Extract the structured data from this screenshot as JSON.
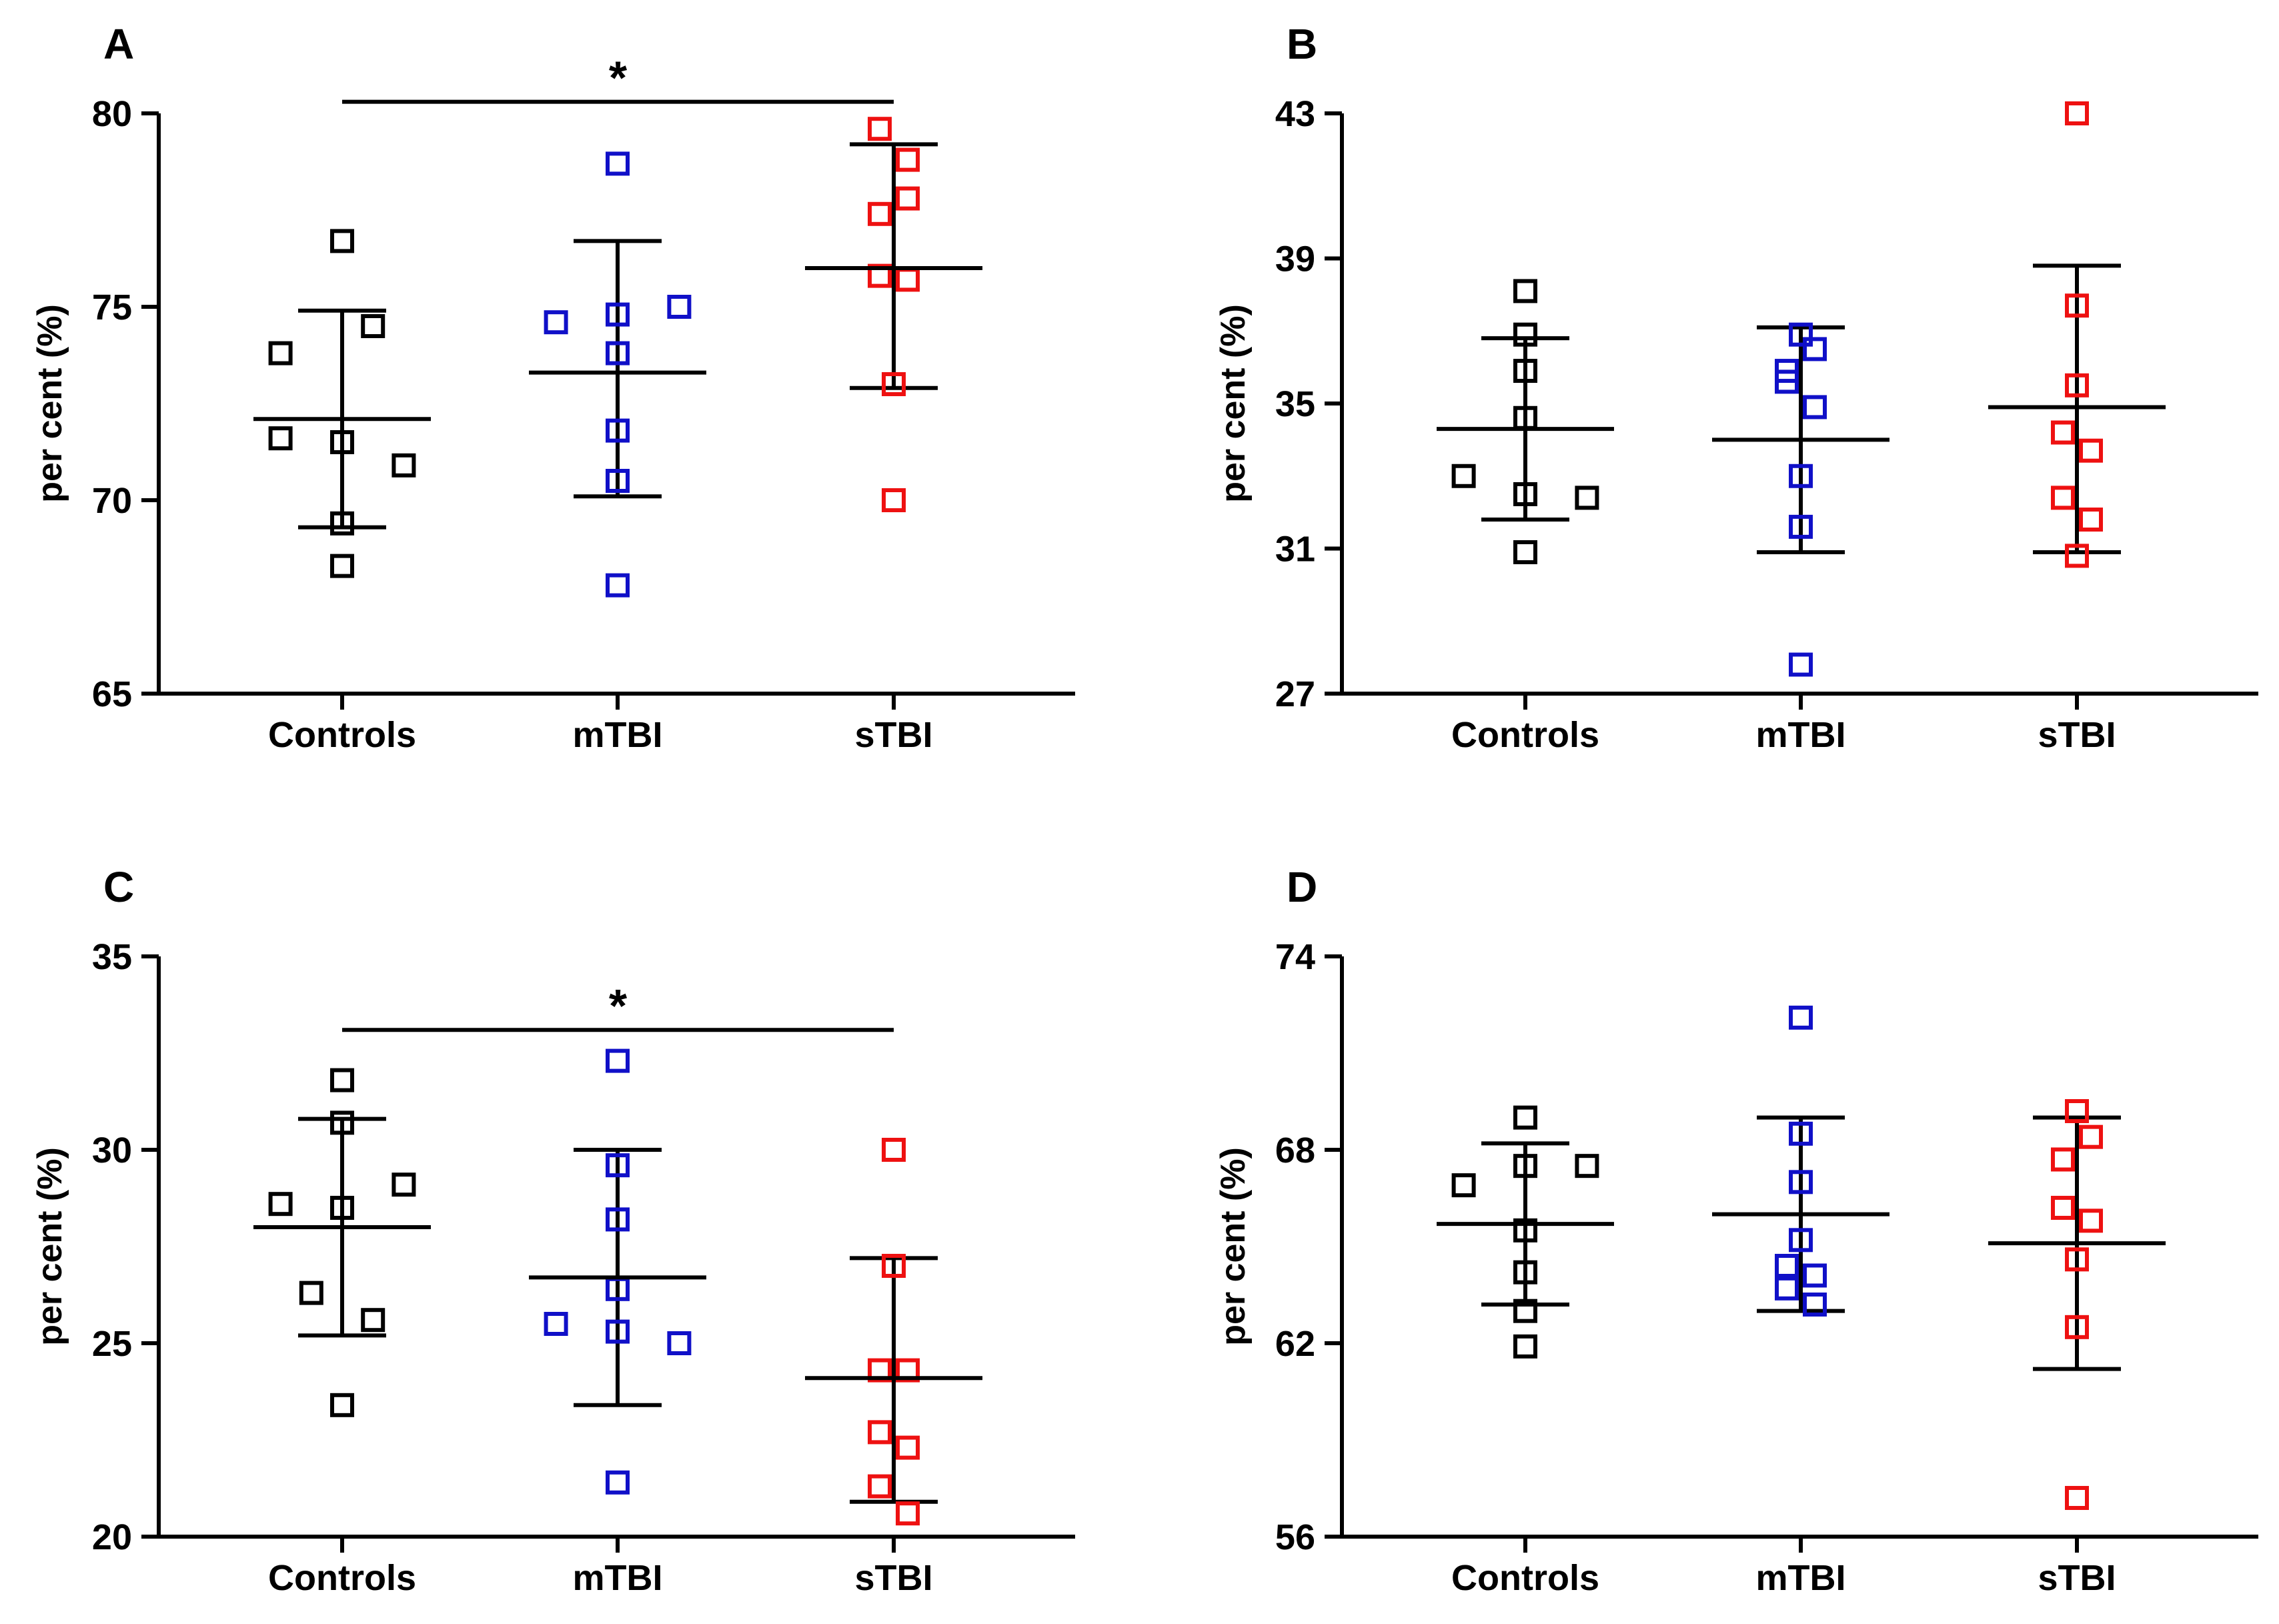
{
  "colors": {
    "Controls": "#000000",
    "mTBI": "#1010c8",
    "sTBI": "#ee1111"
  },
  "chart_data": [
    {
      "type": "scatter",
      "panel": "A",
      "ylabel": "per cent (%)",
      "ylim": [
        65,
        80
      ],
      "yticks": [
        "65",
        "70",
        "75",
        "80"
      ],
      "categories": [
        "Controls",
        "mTBI",
        "sTBI"
      ],
      "groups": [
        {
          "name": "Controls",
          "mean": 72.1,
          "sd_low": 69.3,
          "sd_high": 74.9,
          "points": [
            [
              0,
              76.7
            ],
            [
              -0.22,
              73.8
            ],
            [
              0.11,
              74.5
            ],
            [
              -0.22,
              71.6
            ],
            [
              0,
              71.5
            ],
            [
              0.22,
              70.9
            ],
            [
              0,
              69.4
            ],
            [
              0,
              68.3
            ]
          ]
        },
        {
          "name": "mTBI",
          "mean": 73.3,
          "sd_low": 70.1,
          "sd_high": 76.7,
          "points": [
            [
              0,
              78.7
            ],
            [
              -0.22,
              74.6
            ],
            [
              0,
              74.8
            ],
            [
              0.22,
              75.0
            ],
            [
              0,
              73.8
            ],
            [
              0,
              71.8
            ],
            [
              0,
              70.5
            ],
            [
              0,
              67.8
            ]
          ]
        },
        {
          "name": "sTBI",
          "mean": 76.0,
          "sd_low": 72.9,
          "sd_high": 79.2,
          "points": [
            [
              -0.05,
              79.6
            ],
            [
              0.05,
              78.8
            ],
            [
              0.05,
              77.8
            ],
            [
              -0.05,
              77.4
            ],
            [
              -0.05,
              75.8
            ],
            [
              0.05,
              75.7
            ],
            [
              0,
              73.0
            ],
            [
              0,
              70.0
            ]
          ]
        }
      ],
      "significance": {
        "from": "Controls",
        "to": "sTBI",
        "label": "*",
        "y": 80.3
      }
    },
    {
      "type": "scatter",
      "panel": "B",
      "ylabel": "per cent (%)",
      "ylim": [
        27,
        43
      ],
      "yticks": [
        "27",
        "31",
        "35",
        "39",
        "43"
      ],
      "categories": [
        "Controls",
        "mTBI",
        "sTBI"
      ],
      "groups": [
        {
          "name": "Controls",
          "mean": 34.3,
          "sd_low": 31.8,
          "sd_high": 36.8,
          "points": [
            [
              0,
              38.1
            ],
            [
              0,
              36.9
            ],
            [
              0,
              35.9
            ],
            [
              0,
              34.6
            ],
            [
              -0.22,
              33.0
            ],
            [
              0,
              32.5
            ],
            [
              0.22,
              32.4
            ],
            [
              0,
              30.9
            ]
          ]
        },
        {
          "name": "mTBI",
          "mean": 34.0,
          "sd_low": 30.9,
          "sd_high": 37.1,
          "points": [
            [
              0,
              36.9
            ],
            [
              0.05,
              36.5
            ],
            [
              -0.05,
              35.9
            ],
            [
              -0.05,
              35.6
            ],
            [
              0.05,
              34.9
            ],
            [
              0,
              33.0
            ],
            [
              0,
              31.6
            ],
            [
              0,
              27.8
            ]
          ]
        },
        {
          "name": "sTBI",
          "mean": 34.9,
          "sd_low": 30.9,
          "sd_high": 38.8,
          "points": [
            [
              0,
              43.0
            ],
            [
              0,
              37.7
            ],
            [
              0,
              35.5
            ],
            [
              -0.05,
              34.2
            ],
            [
              0.05,
              33.7
            ],
            [
              -0.05,
              32.4
            ],
            [
              0.05,
              31.8
            ],
            [
              0,
              30.8
            ]
          ]
        }
      ]
    },
    {
      "type": "scatter",
      "panel": "C",
      "ylabel": "per cent (%)",
      "ylim": [
        20,
        35
      ],
      "yticks": [
        "20",
        "25",
        "30",
        "35"
      ],
      "categories": [
        "Controls",
        "mTBI",
        "sTBI"
      ],
      "groups": [
        {
          "name": "Controls",
          "mean": 28.0,
          "sd_low": 25.2,
          "sd_high": 30.8,
          "points": [
            [
              0,
              31.8
            ],
            [
              0,
              30.7
            ],
            [
              -0.22,
              28.6
            ],
            [
              0,
              28.5
            ],
            [
              0.22,
              29.1
            ],
            [
              -0.11,
              26.3
            ],
            [
              0.11,
              25.6
            ],
            [
              0,
              23.4
            ]
          ]
        },
        {
          "name": "mTBI",
          "mean": 26.7,
          "sd_low": 23.4,
          "sd_high": 30.0,
          "points": [
            [
              0,
              32.3
            ],
            [
              0,
              29.6
            ],
            [
              0,
              28.2
            ],
            [
              0,
              26.4
            ],
            [
              -0.22,
              25.5
            ],
            [
              0,
              25.3
            ],
            [
              0.22,
              25.0
            ],
            [
              0,
              21.4
            ]
          ]
        },
        {
          "name": "sTBI",
          "mean": 24.1,
          "sd_low": 20.9,
          "sd_high": 27.2,
          "points": [
            [
              0,
              30.0
            ],
            [
              0,
              27.0
            ],
            [
              -0.05,
              24.3
            ],
            [
              0.05,
              24.3
            ],
            [
              -0.05,
              22.7
            ],
            [
              0.05,
              22.3
            ],
            [
              -0.05,
              21.3
            ],
            [
              0.05,
              20.6
            ]
          ]
        }
      ],
      "significance": {
        "from": "Controls",
        "to": "sTBI",
        "label": "*",
        "y": 33.1
      }
    },
    {
      "type": "scatter",
      "panel": "D",
      "ylabel": "per cent (%)",
      "ylim": [
        56,
        74
      ],
      "yticks": [
        "56",
        "62",
        "68",
        "74"
      ],
      "categories": [
        "Controls",
        "mTBI",
        "sTBI"
      ],
      "groups": [
        {
          "name": "Controls",
          "mean": 65.7,
          "sd_low": 63.2,
          "sd_high": 68.2,
          "points": [
            [
              0,
              69.0
            ],
            [
              -0.22,
              66.9
            ],
            [
              0,
              67.5
            ],
            [
              0.22,
              67.5
            ],
            [
              0,
              65.5
            ],
            [
              0,
              64.2
            ],
            [
              0,
              63.0
            ],
            [
              0,
              61.9
            ]
          ]
        },
        {
          "name": "mTBI",
          "mean": 66.0,
          "sd_low": 63.0,
          "sd_high": 69.0,
          "points": [
            [
              0,
              72.1
            ],
            [
              0,
              68.5
            ],
            [
              0,
              67.0
            ],
            [
              0,
              65.2
            ],
            [
              -0.05,
              64.4
            ],
            [
              0.05,
              64.1
            ],
            [
              -0.05,
              63.7
            ],
            [
              0.05,
              63.2
            ]
          ]
        },
        {
          "name": "sTBI",
          "mean": 65.1,
          "sd_low": 61.2,
          "sd_high": 69.0,
          "points": [
            [
              0,
              69.2
            ],
            [
              0.05,
              68.4
            ],
            [
              -0.05,
              67.7
            ],
            [
              -0.05,
              66.2
            ],
            [
              0.05,
              65.8
            ],
            [
              0,
              64.6
            ],
            [
              0,
              62.5
            ],
            [
              0,
              57.2
            ]
          ]
        }
      ]
    }
  ]
}
